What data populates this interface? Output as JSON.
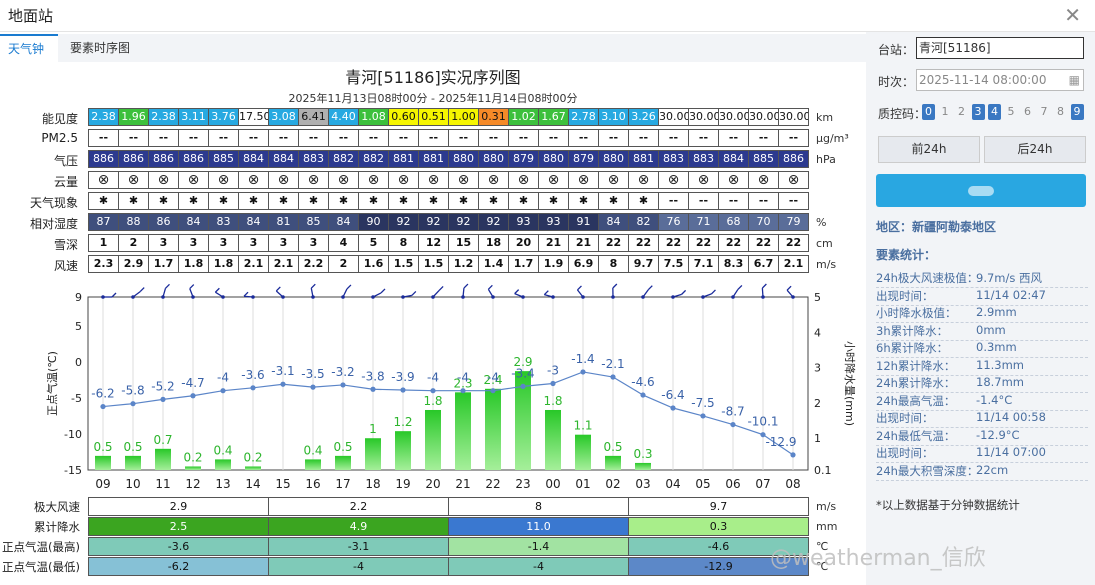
{
  "window": {
    "title": "地面站"
  },
  "tabs": [
    {
      "label": "天气钟"
    },
    {
      "label": "要素时序图"
    }
  ],
  "chart_title": "青河[51186]实况序列图",
  "chart_subtitle": "2025年11月13日08时00分 - 2025年11月14日08时00分",
  "table": {
    "rows": [
      {
        "label": "能见度",
        "unit": "km",
        "kind": "vis",
        "values": [
          "2.38",
          "1.96",
          "2.38",
          "3.11",
          "3.76",
          "17.50",
          "3.08",
          "6.41",
          "4.40",
          "1.08",
          "0.60",
          "0.51",
          "1.00",
          "0.31",
          "1.02",
          "1.67",
          "2.78",
          "3.10",
          "3.26",
          "30.00",
          "30.00",
          "30.00",
          "30.00",
          "30.00"
        ],
        "colors": [
          "#27a9e1",
          "#3cc03c",
          "#27a9e1",
          "#27a9e1",
          "#27a9e1",
          "#ffffff",
          "#27a9e1",
          "#b0b0b0",
          "#27a9e1",
          "#3cc03c",
          "#f5f500",
          "#f5f500",
          "#f5f500",
          "#f58a28",
          "#3cc03c",
          "#3cc03c",
          "#27a9e1",
          "#27a9e1",
          "#27a9e1",
          "#ffffff",
          "#ffffff",
          "#ffffff",
          "#ffffff",
          "#ffffff"
        ]
      },
      {
        "label": "PM2.5",
        "unit": "μg/m³",
        "kind": "plain",
        "values": [
          "--",
          "--",
          "--",
          "--",
          "--",
          "--",
          "--",
          "--",
          "--",
          "--",
          "--",
          "--",
          "--",
          "--",
          "--",
          "--",
          "--",
          "--",
          "--",
          "--",
          "--",
          "--",
          "--",
          "--"
        ]
      },
      {
        "label": "气压",
        "unit": "hPa",
        "kind": "pres",
        "values": [
          "886",
          "886",
          "886",
          "886",
          "885",
          "884",
          "884",
          "883",
          "882",
          "882",
          "881",
          "881",
          "880",
          "880",
          "879",
          "880",
          "879",
          "880",
          "881",
          "883",
          "883",
          "884",
          "885",
          "886"
        ]
      },
      {
        "label": "云量",
        "unit": "",
        "kind": "dark",
        "values": [
          "⊗",
          "⊗",
          "⊗",
          "⊗",
          "⊗",
          "⊗",
          "⊗",
          "⊗",
          "⊗",
          "⊗",
          "⊗",
          "⊗",
          "⊗",
          "⊗",
          "⊗",
          "⊗",
          "⊗",
          "⊗",
          "⊗",
          "⊗",
          "⊗",
          "⊗",
          "⊗",
          "⊗"
        ]
      },
      {
        "label": "天气现象",
        "unit": "",
        "kind": "plain",
        "values": [
          "✱",
          "✱",
          "✱",
          "✱",
          "✱",
          "✱",
          "✱",
          "✱",
          "✱",
          "✱",
          "✱",
          "✱",
          "✱",
          "✱",
          "✱",
          "✱",
          "✱",
          "✱",
          "✱",
          "--",
          "--",
          "--",
          "--",
          "--"
        ]
      },
      {
        "label": "相对湿度",
        "unit": "%",
        "kind": "rh",
        "values": [
          "87",
          "88",
          "86",
          "84",
          "83",
          "84",
          "81",
          "85",
          "84",
          "90",
          "92",
          "92",
          "92",
          "92",
          "93",
          "93",
          "91",
          "84",
          "82",
          "76",
          "71",
          "68",
          "70",
          "79"
        ]
      },
      {
        "label": "雪深",
        "unit": "cm",
        "kind": "plain",
        "values": [
          "1",
          "2",
          "3",
          "3",
          "3",
          "3",
          "3",
          "3",
          "4",
          "5",
          "8",
          "12",
          "15",
          "18",
          "20",
          "21",
          "21",
          "22",
          "22",
          "22",
          "22",
          "22",
          "22",
          "22"
        ]
      },
      {
        "label": "风速",
        "unit": "m/s",
        "kind": "plain",
        "values": [
          "2.3",
          "2.9",
          "1.7",
          "1.8",
          "1.8",
          "2.1",
          "2.1",
          "2.2",
          "2",
          "1.6",
          "1.5",
          "1.5",
          "1.2",
          "1.4",
          "1.7",
          "1.9",
          "6.9",
          "8",
          "9.7",
          "7.5",
          "7.1",
          "8.3",
          "6.7",
          "2.1"
        ]
      }
    ]
  },
  "chart_data": {
    "type": "bar+line",
    "x_hours": [
      "09",
      "10",
      "11",
      "12",
      "13",
      "14",
      "15",
      "16",
      "17",
      "18",
      "19",
      "20",
      "21",
      "22",
      "23",
      "00",
      "01",
      "02",
      "03",
      "04",
      "05",
      "06",
      "07",
      "08"
    ],
    "temperature": [
      -6.2,
      -5.8,
      -5.2,
      -4.7,
      -4,
      -3.6,
      -3.1,
      -3.5,
      -3.2,
      -3.8,
      -3.9,
      -4,
      -4,
      -4,
      -3.4,
      -3,
      -1.4,
      -2.1,
      -4.6,
      -6.4,
      -7.5,
      -8.7,
      -10.1,
      -12.9
    ],
    "temperature_labels": [
      "-6.2",
      "-5.8",
      "-5.2",
      "-4.7",
      "-4",
      "-3.6",
      "-3.1",
      "-3.5",
      "-3.2",
      "-3.8",
      "-3.9",
      "-4",
      "-4",
      "-4",
      "-3.4",
      "-3",
      "-1.4",
      "-2.1",
      "-4.6",
      "-6.4",
      "-7.5",
      "-8.7",
      "-10.1",
      "-12.9"
    ],
    "precipitation": [
      0.5,
      0.5,
      0.7,
      0.2,
      0.4,
      0.2,
      0,
      0.4,
      0.5,
      1,
      1.2,
      1.8,
      2.3,
      2.4,
      2.9,
      1.8,
      1.1,
      0.5,
      0.3,
      0,
      0,
      0,
      0,
      0
    ],
    "precipitation_labels": [
      "0.5",
      "0.5",
      "0.7",
      "0.2",
      "0.4",
      "0.2",
      "",
      "0.4",
      "0.5",
      "1",
      "1.2",
      "1.8",
      "2.3",
      "2.4",
      "2.9",
      "1.8",
      "1.1",
      "0.5",
      "0.3",
      "",
      "",
      "",
      "",
      ""
    ],
    "y_left": {
      "label": "正点气温(℃)",
      "ticks": [
        "9",
        "5",
        "0",
        "-5",
        "-10",
        "-15"
      ],
      "range": [
        -15,
        9
      ]
    },
    "y_right": {
      "label": "小时降水量(mm)",
      "ticks": [
        "5",
        "4",
        "3",
        "2",
        "1",
        "0.1"
      ],
      "range": [
        0.1,
        5
      ]
    },
    "colors": {
      "line": "#5b85c8",
      "bar_top": "#28c828",
      "bar_bottom": "#a5ef9a",
      "barb": "#1a2b9a"
    }
  },
  "summary": {
    "rows": [
      {
        "label": "极大风速",
        "unit": "m/s",
        "values": [
          "2.9",
          "2.2",
          "8",
          "9.7"
        ],
        "colors": [
          "#ffffff",
          "#ffffff",
          "#ffffff",
          "#ffffff"
        ]
      },
      {
        "label": "累计降水",
        "unit": "mm",
        "values": [
          "2.5",
          "4.9",
          "11.0",
          "0.3"
        ],
        "colors": [
          "#3ba520",
          "#3ba520",
          "#3a78d0",
          "#a8ee8a"
        ]
      },
      {
        "label": "正点气温(最高)",
        "unit": "℃",
        "values": [
          "-3.6",
          "-3.1",
          "-1.4",
          "-4.6"
        ],
        "colors": [
          "#7fcab8",
          "#7fcab8",
          "#a2e3a2",
          "#7fcab8"
        ]
      },
      {
        "label": "正点气温(最低)",
        "unit": "℃",
        "values": [
          "-6.2",
          "-4",
          "-4",
          "-12.9"
        ],
        "colors": [
          "#86c1d6",
          "#7fcab8",
          "#7fcab8",
          "#5c88c8"
        ]
      }
    ]
  },
  "sidebar": {
    "station_label": "台站：",
    "station_value": "青河[51186]",
    "time_label": "时次：",
    "time_value": "2025-11-14 08:00:00",
    "qc_label": "质控码：",
    "qc_codes": [
      "0",
      "1",
      "2",
      "3",
      "4",
      "5",
      "6",
      "7",
      "8",
      "9"
    ],
    "qc_active": [
      "0",
      "3",
      "4",
      "9"
    ],
    "prev_button": "前24h",
    "next_button": "后24h",
    "region": "地区：新疆阿勒泰地区",
    "stats_title": "要素统计：",
    "stats": [
      {
        "k": "24h极大风速极值：",
        "v": "9.7m/s 西风"
      },
      {
        "k": "出现时间：",
        "v": "11/14 02:47"
      },
      {
        "k": "小时降水极值：",
        "v": "2.9mm"
      },
      {
        "k": "3h累计降水：",
        "v": "0mm"
      },
      {
        "k": "6h累计降水：",
        "v": "0.3mm"
      },
      {
        "k": "12h累计降水：",
        "v": "11.3mm"
      },
      {
        "k": "24h累计降水：",
        "v": "18.7mm"
      },
      {
        "k": "24h最高气温：",
        "v": "-1.4°C"
      },
      {
        "k": "出现时间：",
        "v": "11/14 00:58"
      },
      {
        "k": "24h最低气温：",
        "v": "-12.9°C"
      },
      {
        "k": "出现时间：",
        "v": "11/14 07:00"
      },
      {
        "k": "24h最大积雪深度：",
        "v": "22cm"
      }
    ],
    "note": "*以上数据基于分钟数据统计"
  },
  "watermark": "@weatherman_信欣"
}
